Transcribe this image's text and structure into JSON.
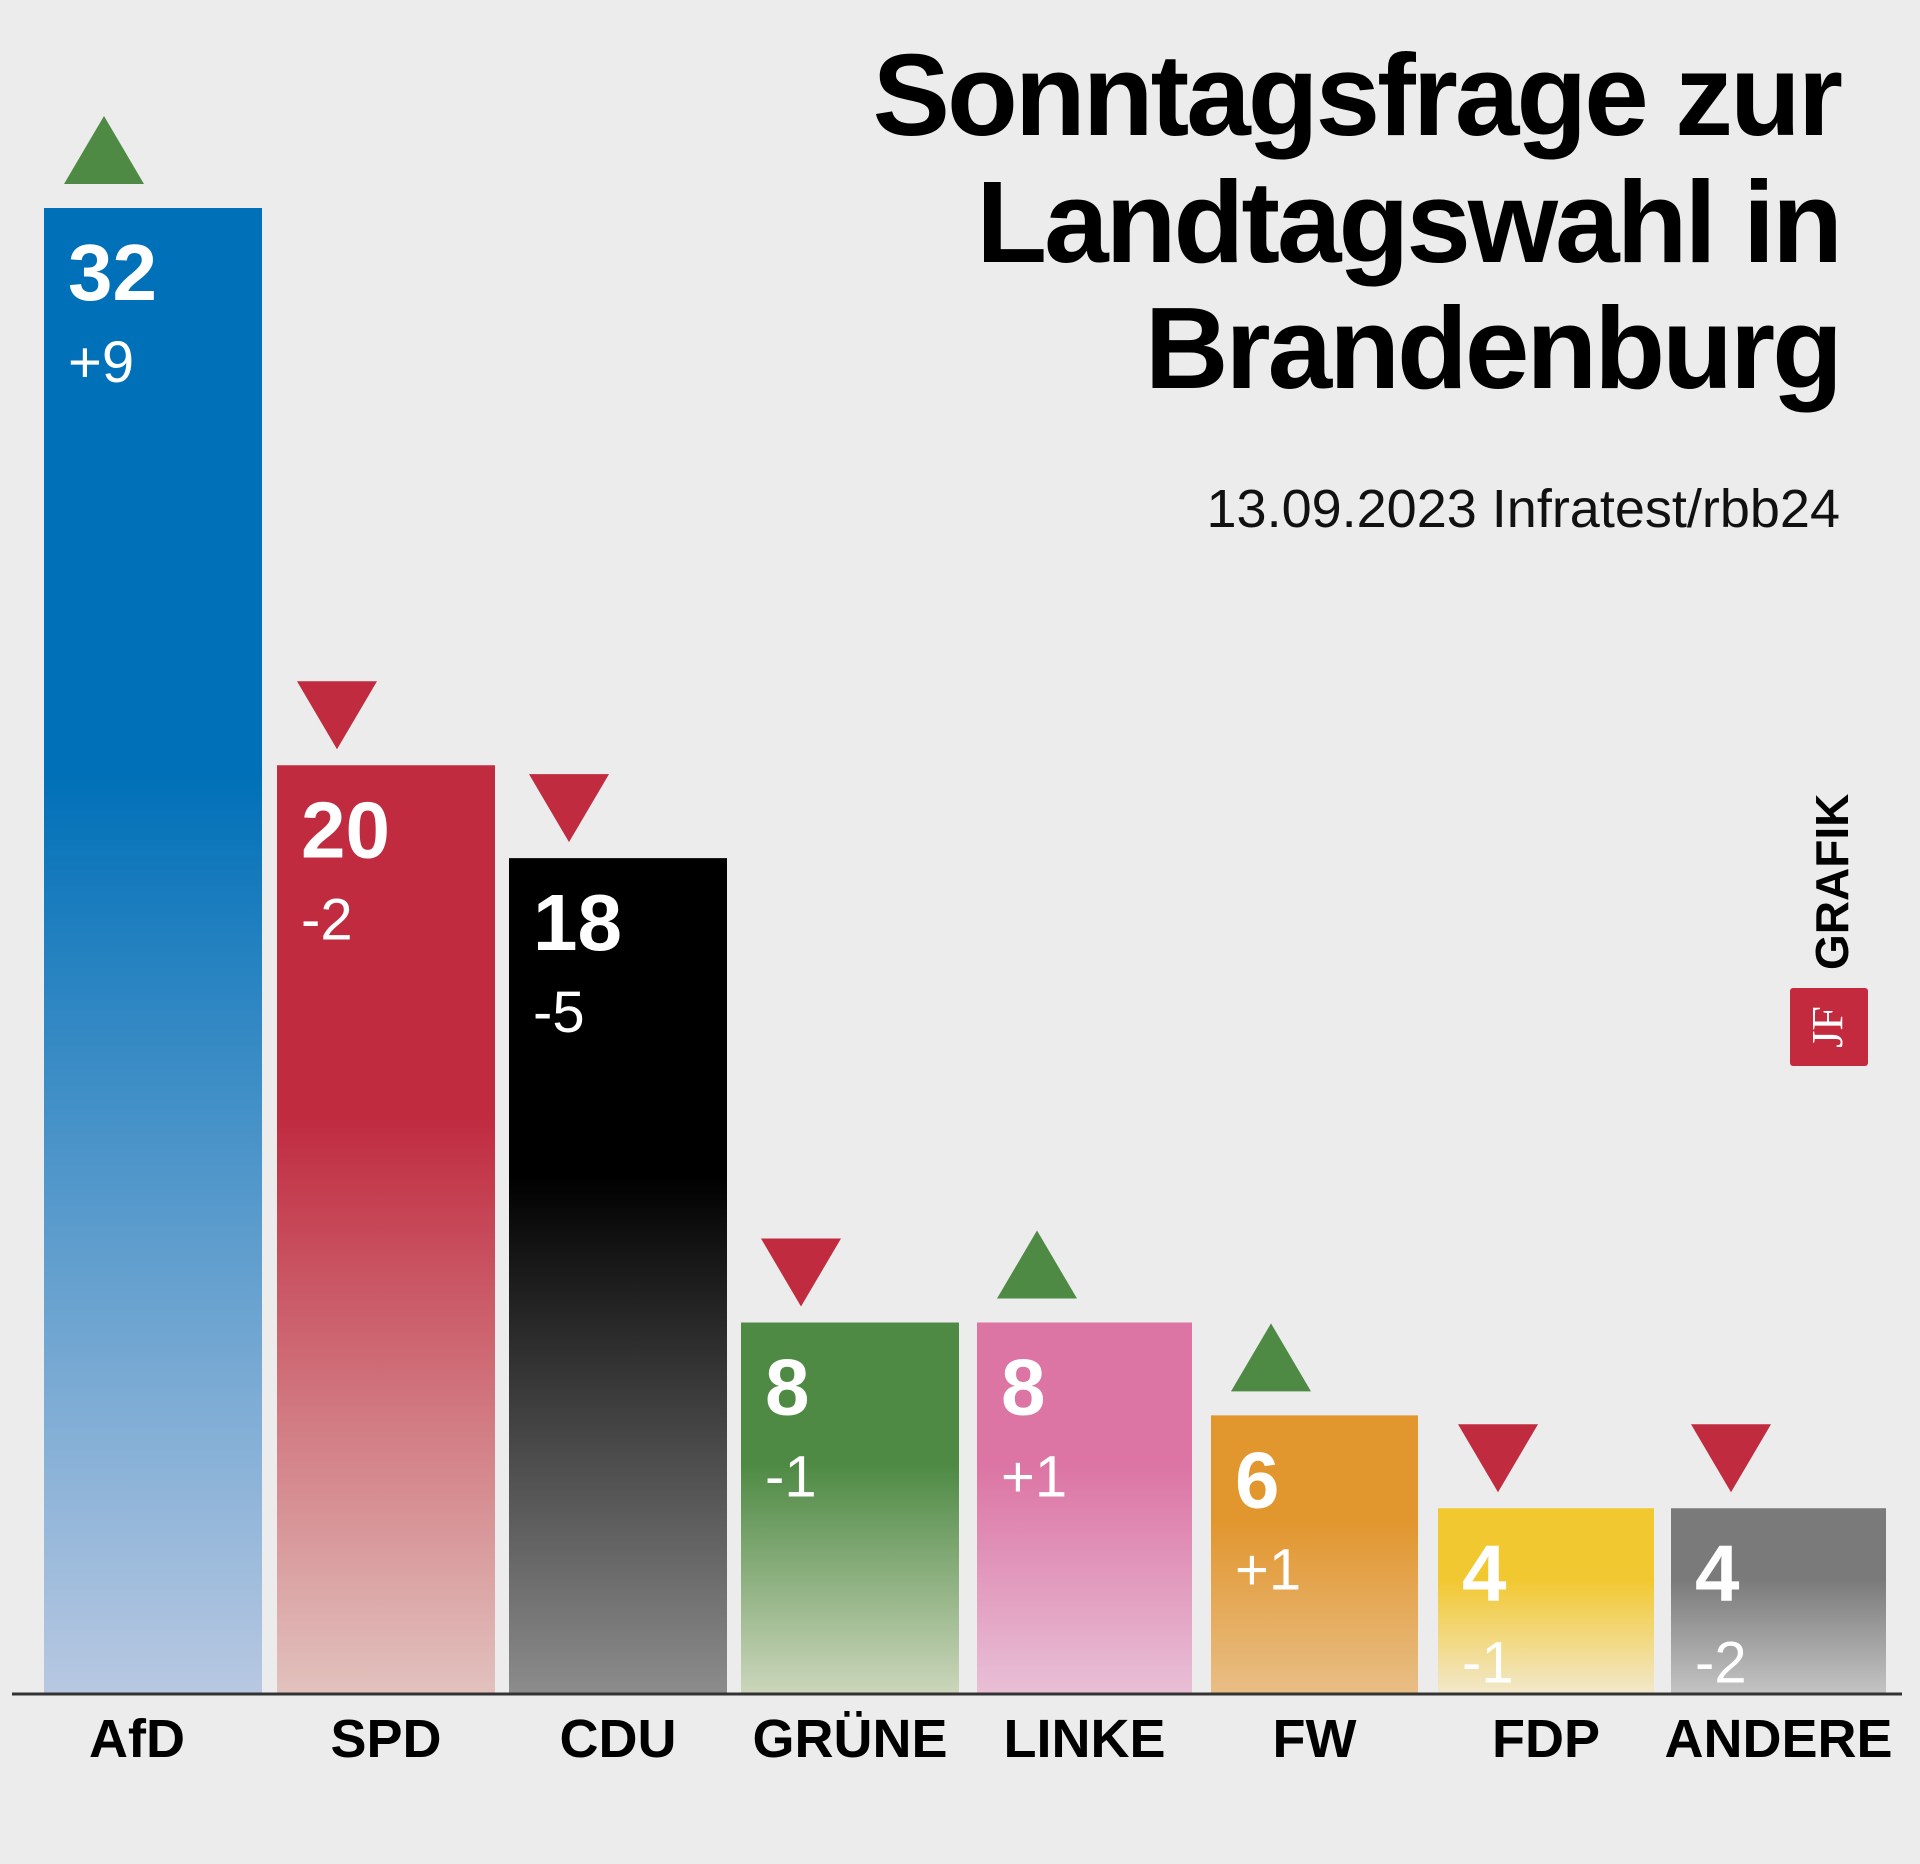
{
  "chart_data": {
    "type": "bar",
    "title_lines": [
      "Sonntagsfrage zur",
      "Landtagswahl in",
      "Brandenburg"
    ],
    "subtitle": "13.09.2023 Infratest/rbb24",
    "categories": [
      "AfD",
      "SPD",
      "CDU",
      "GRÜNE",
      "LINKE",
      "FW",
      "FDP",
      "ANDERE"
    ],
    "values": [
      32,
      20,
      18,
      8,
      8,
      6,
      4,
      4
    ],
    "changes": [
      "+9",
      "-2",
      "-5",
      "-1",
      "+1",
      "+1",
      "-1",
      "-2"
    ],
    "colors": [
      "#0070b8",
      "#c02b40",
      "#000000",
      "#4e8a44",
      "#dc74a4",
      "#e2962e",
      "#f2c830",
      "#7a7a7a"
    ],
    "fade_colors": [
      "#b8c8e2",
      "#e2c2be",
      "#8c8c8c",
      "#ccd6bc",
      "#e8c0d6",
      "#e8be86",
      "#f2e8cc",
      "#c4c4c4"
    ],
    "trend_colors": {
      "up": "#4e8a44",
      "down": "#c02b40"
    },
    "ylim": [
      0,
      32
    ],
    "xlabel": "",
    "ylabel": "",
    "grid": false
  },
  "branding": {
    "label": "GRAFIK",
    "logo_text": "JF",
    "logo_color": "#c42a3e"
  }
}
